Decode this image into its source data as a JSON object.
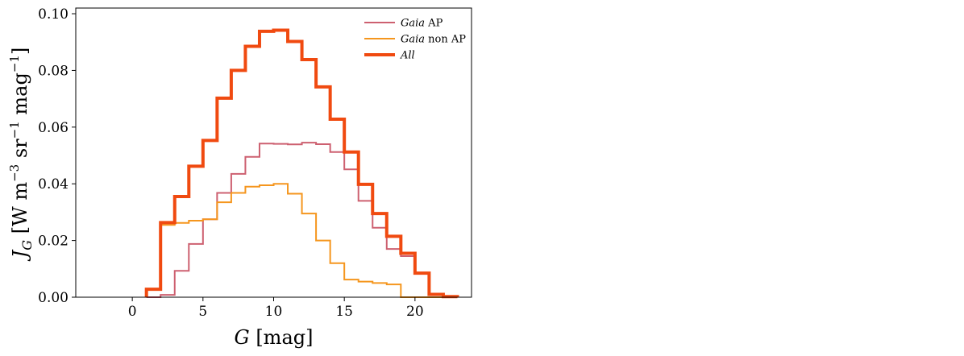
{
  "chart_data": {
    "type": "line",
    "drawstyle": "steps",
    "xlabel": "G [mag]",
    "xlabel_parts": {
      "var": "G",
      "unit": " [mag]"
    },
    "ylabel": "J_G [W m^-3 sr^-1 mag^-1]",
    "ylabel_parts": {
      "var": "J",
      "sub": "G",
      "unit1": " [W m",
      "exp1": "−3",
      "unit2": " sr",
      "exp2": "−1",
      "unit3": " mag",
      "exp3": "−1",
      "unit4": "]"
    },
    "xlim": [
      -4,
      24
    ],
    "ylim": [
      0,
      0.102
    ],
    "x_ticks": [
      0,
      5,
      10,
      15,
      20
    ],
    "x_tick_labels": [
      "0",
      "5",
      "10",
      "15",
      "20"
    ],
    "y_ticks": [
      0,
      0.02,
      0.04,
      0.06,
      0.08,
      0.1
    ],
    "y_tick_labels": [
      "0.00",
      "0.02",
      "0.04",
      "0.06",
      "0.08",
      "0.10"
    ],
    "grid": false,
    "legend_position": "top-right",
    "bin_edges": [
      1,
      2,
      3,
      4,
      5,
      6,
      7,
      8,
      9,
      10,
      11,
      12,
      13,
      14,
      15,
      16,
      17,
      18,
      19,
      20,
      21,
      22,
      23
    ],
    "series": [
      {
        "name": "Gaia AP",
        "name_italic": "Gaia",
        "name_rest": " AP",
        "color": "#cd6070",
        "linewidth": 2,
        "values": [
          0.0,
          0.0008,
          0.0093,
          0.0188,
          0.0275,
          0.0368,
          0.0435,
          0.0495,
          0.0542,
          0.0541,
          0.0539,
          0.0545,
          0.054,
          0.0512,
          0.0451,
          0.034,
          0.0245,
          0.017,
          0.0145,
          0.0085,
          0.001,
          0.0002
        ]
      },
      {
        "name": "Gaia non AP",
        "name_italic": "Gaia",
        "name_rest": " non AP",
        "color": "#f5961e",
        "linewidth": 2,
        "values": [
          0.0028,
          0.0255,
          0.0262,
          0.027,
          0.0275,
          0.0335,
          0.0368,
          0.039,
          0.0395,
          0.04,
          0.0365,
          0.0295,
          0.02,
          0.012,
          0.0062,
          0.0055,
          0.005,
          0.0045,
          0.0,
          0.0,
          0.0,
          0.0
        ]
      },
      {
        "name": "All",
        "name_italic": "All",
        "name_rest": "",
        "color": "#f04a10",
        "linewidth": 4,
        "values": [
          0.0028,
          0.0263,
          0.0355,
          0.0462,
          0.0553,
          0.0702,
          0.08,
          0.0885,
          0.0938,
          0.0942,
          0.0902,
          0.0838,
          0.0742,
          0.0628,
          0.0512,
          0.0398,
          0.0295,
          0.0215,
          0.0155,
          0.0085,
          0.001,
          0.0002
        ]
      }
    ]
  }
}
